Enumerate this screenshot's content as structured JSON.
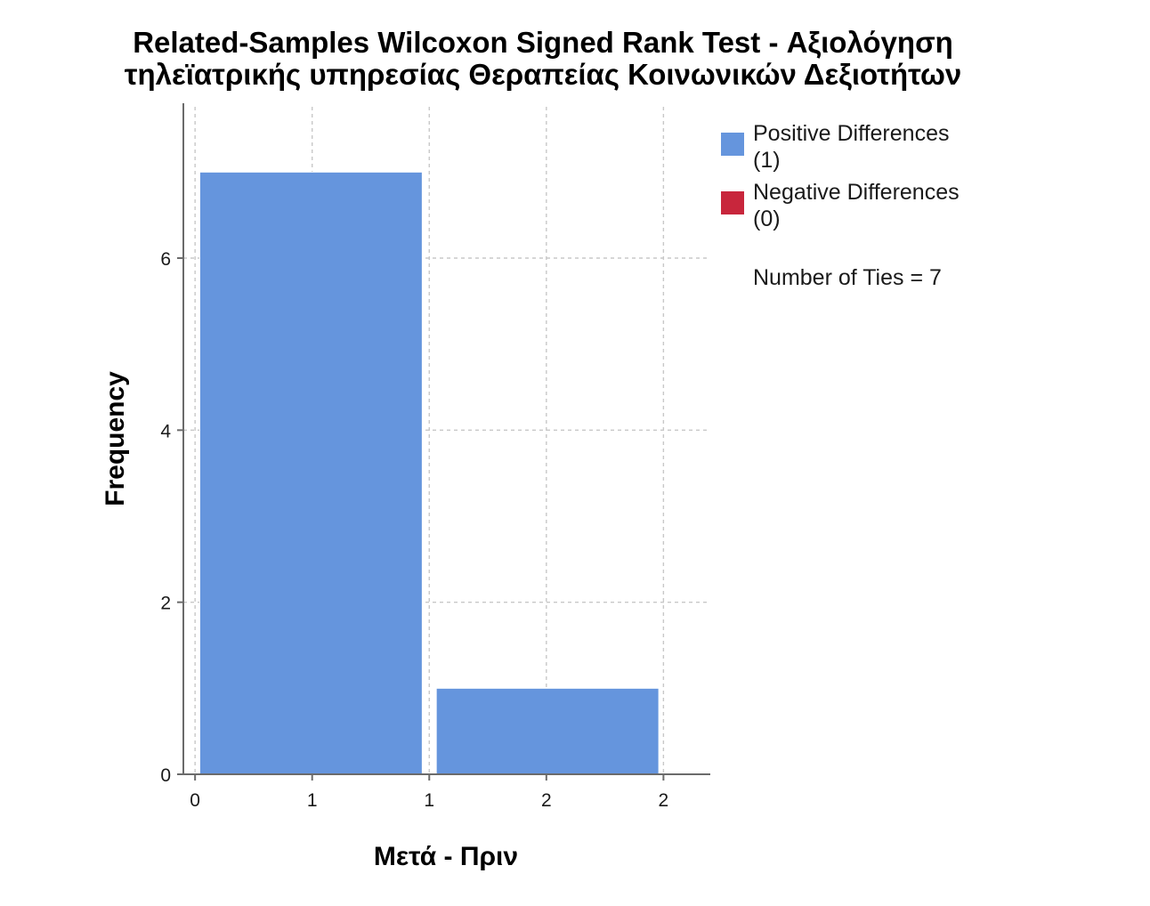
{
  "chart_data": {
    "type": "bar",
    "title_lines": [
      "Related-Samples Wilcoxon Signed Rank Test - Αξιολόγηση",
      "τηλεϊατρικής υπηρεσίας Θεραπείας Κοινωνικών Δεξιοτήτων"
    ],
    "xlabel": "Μετά - Πριν",
    "ylabel": "Frequency",
    "x_tick_labels": [
      "0",
      "1",
      "1",
      "2",
      "2"
    ],
    "x_tick_values": [
      0.25,
      0.75,
      1.25,
      1.75,
      2.25
    ],
    "xlim": [
      0.2,
      2.45
    ],
    "y_ticks": [
      0,
      2,
      4,
      6
    ],
    "y_tick_labels": [
      "0",
      "2",
      "4",
      "6"
    ],
    "ylim": [
      0,
      7.8
    ],
    "grid": true,
    "bins": [
      {
        "from": 0.27,
        "to": 1.22,
        "value": 7
      },
      {
        "from": 1.28,
        "to": 2.23,
        "value": 1
      }
    ],
    "series": [
      {
        "name": "Positive Differences",
        "count_label": "(1)",
        "color": "#6595dd"
      },
      {
        "name": "Negative Differences",
        "count_label": "(0)",
        "color": "#c8263c"
      }
    ],
    "legend_position": "right",
    "annotation": "Number of Ties = 7"
  }
}
